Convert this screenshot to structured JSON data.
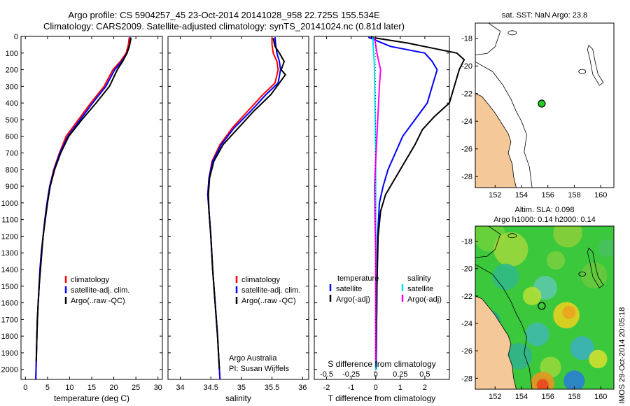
{
  "header": {
    "line1": "Argo profile: CS 5904257_45 23-Oct-2014 20141028_958 22.725S 155.534E",
    "line2": "Climatology: CARS2009. Satellite-adjusted climatology: synTS_20141024.nc (0.81d later)"
  },
  "colors": {
    "climatology": "#ff0000",
    "satellite": "#0000ff",
    "argo": "#000000",
    "salinity_satellite": "#00e5ee",
    "salinity_argo": "#ff00ff",
    "land": "#f5c89a",
    "argo_marker": "#22cc22"
  },
  "chart_data": [
    {
      "type": "line",
      "id": "temperature",
      "xlabel": "temperature (deg C)",
      "ylabel": "",
      "xlim": [
        -1,
        31
      ],
      "ylim": [
        2060,
        0
      ],
      "xticks": [
        "0",
        "5",
        "10",
        "15",
        "20",
        "25",
        "30"
      ],
      "yticks": [
        "0",
        "100",
        "200",
        "300",
        "400",
        "500",
        "600",
        "700",
        "800",
        "900",
        "1000",
        "1100",
        "1200",
        "1300",
        "1400",
        "1500",
        "1600",
        "1700",
        "1800",
        "1900",
        "2000"
      ],
      "legend": [
        "climatology",
        "satellite-adj. clim.",
        "Argo(..raw -QC)"
      ],
      "series": [
        {
          "name": "climatology",
          "color_key": "climatology",
          "points": [
            [
              23.5,
              5
            ],
            [
              23.3,
              50
            ],
            [
              22.8,
              100
            ],
            [
              21.5,
              150
            ],
            [
              19.8,
              200
            ],
            [
              17.8,
              300
            ],
            [
              14.8,
              400
            ],
            [
              12.0,
              500
            ],
            [
              9.2,
              600
            ],
            [
              7.7,
              700
            ],
            [
              6.4,
              800
            ],
            [
              5.5,
              900
            ],
            [
              4.9,
              1000
            ],
            [
              4.4,
              1100
            ],
            [
              4.0,
              1200
            ],
            [
              3.6,
              1300
            ],
            [
              3.3,
              1400
            ],
            [
              3.1,
              1500
            ],
            [
              2.9,
              1600
            ],
            [
              2.7,
              1700
            ],
            [
              2.6,
              1800
            ],
            [
              2.5,
              1900
            ],
            [
              2.4,
              2000
            ],
            [
              2.35,
              2060
            ]
          ]
        },
        {
          "name": "satellite-adj. clim.",
          "color_key": "satellite",
          "points": [
            [
              23.8,
              5
            ],
            [
              23.6,
              50
            ],
            [
              23.0,
              100
            ],
            [
              21.8,
              150
            ],
            [
              20.2,
              200
            ],
            [
              18.2,
              300
            ],
            [
              15.2,
              400
            ],
            [
              12.4,
              500
            ],
            [
              9.6,
              600
            ],
            [
              7.8,
              700
            ],
            [
              6.5,
              800
            ],
            [
              5.5,
              900
            ],
            [
              4.9,
              1000
            ],
            [
              4.4,
              1100
            ],
            [
              4.0,
              1200
            ],
            [
              3.6,
              1300
            ],
            [
              3.3,
              1400
            ],
            [
              3.1,
              1500
            ],
            [
              2.9,
              1600
            ],
            [
              2.7,
              1700
            ],
            [
              2.6,
              1800
            ],
            [
              2.5,
              1900
            ],
            [
              2.4,
              2000
            ],
            [
              2.35,
              2060
            ]
          ]
        },
        {
          "name": "Argo(..raw -QC)",
          "color_key": "argo",
          "points": [
            [
              23.9,
              10
            ],
            [
              23.5,
              60
            ],
            [
              23.0,
              100
            ],
            [
              22.0,
              150
            ],
            [
              20.8,
              200
            ],
            [
              19.0,
              300
            ],
            [
              16.0,
              400
            ],
            [
              12.8,
              500
            ],
            [
              9.8,
              600
            ],
            [
              8.0,
              700
            ],
            [
              6.6,
              800
            ],
            [
              5.6,
              900
            ],
            [
              5.0,
              1000
            ],
            [
              4.5,
              1100
            ],
            [
              4.0,
              1200
            ],
            [
              3.7,
              1300
            ],
            [
              3.4,
              1400
            ],
            [
              3.1,
              1500
            ],
            [
              2.9,
              1600
            ],
            [
              2.7,
              1700
            ],
            [
              2.6,
              1800
            ],
            [
              2.5,
              1900
            ],
            [
              2.45,
              1950
            ]
          ]
        }
      ]
    },
    {
      "type": "line",
      "id": "salinity",
      "xlabel": "salinity",
      "ylabel": "",
      "xlim": [
        33.8,
        36.1
      ],
      "ylim": [
        2060,
        0
      ],
      "xticks": [
        "34",
        "34.5",
        "35",
        "35.5",
        "36"
      ],
      "legend": [
        "climatology",
        "satellite-adj. clim.",
        "Argo(..raw -QC)"
      ],
      "annotation": [
        "Argo Australia",
        "PI: Susan Wijffels"
      ],
      "series": [
        {
          "name": "climatology",
          "color_key": "climatology",
          "points": [
            [
              35.5,
              5
            ],
            [
              35.5,
              50
            ],
            [
              35.52,
              100
            ],
            [
              35.58,
              150
            ],
            [
              35.6,
              200
            ],
            [
              35.55,
              280
            ],
            [
              35.35,
              350
            ],
            [
              35.1,
              450
            ],
            [
              34.85,
              550
            ],
            [
              34.65,
              650
            ],
            [
              34.52,
              750
            ],
            [
              34.47,
              850
            ],
            [
              34.45,
              950
            ],
            [
              34.47,
              1050
            ],
            [
              34.5,
              1200
            ],
            [
              34.53,
              1400
            ],
            [
              34.57,
              1600
            ],
            [
              34.61,
              1800
            ],
            [
              34.64,
              2000
            ],
            [
              34.65,
              2060
            ]
          ]
        },
        {
          "name": "satellite-adj. clim.",
          "color_key": "satellite",
          "points": [
            [
              35.55,
              5
            ],
            [
              35.56,
              50
            ],
            [
              35.58,
              100
            ],
            [
              35.62,
              150
            ],
            [
              35.64,
              200
            ],
            [
              35.6,
              280
            ],
            [
              35.4,
              350
            ],
            [
              35.15,
              450
            ],
            [
              34.88,
              550
            ],
            [
              34.67,
              650
            ],
            [
              34.53,
              750
            ],
            [
              34.47,
              850
            ],
            [
              34.45,
              950
            ],
            [
              34.47,
              1050
            ],
            [
              34.5,
              1200
            ],
            [
              34.53,
              1400
            ],
            [
              34.57,
              1600
            ],
            [
              34.61,
              1800
            ],
            [
              34.64,
              2000
            ],
            [
              34.65,
              2060
            ]
          ]
        },
        {
          "name": "Argo(..raw -QC)",
          "color_key": "argo",
          "points": [
            [
              35.52,
              10
            ],
            [
              35.55,
              60
            ],
            [
              35.62,
              100
            ],
            [
              35.7,
              150
            ],
            [
              35.65,
              200
            ],
            [
              35.72,
              230
            ],
            [
              35.62,
              280
            ],
            [
              35.48,
              350
            ],
            [
              35.2,
              450
            ],
            [
              34.95,
              550
            ],
            [
              34.7,
              650
            ],
            [
              34.55,
              750
            ],
            [
              34.48,
              850
            ],
            [
              34.46,
              950
            ],
            [
              34.47,
              1050
            ],
            [
              34.5,
              1200
            ],
            [
              34.53,
              1400
            ],
            [
              34.57,
              1600
            ],
            [
              34.61,
              1800
            ],
            [
              34.64,
              2000
            ]
          ]
        }
      ]
    },
    {
      "type": "line",
      "id": "difference",
      "xlabel": "T difference from climatology",
      "xlabel_top": "S difference from climatology",
      "xlim": [
        -2.5,
        3.0
      ],
      "xticks": [
        "-2",
        "-1",
        "0",
        "1",
        "2"
      ],
      "xticks_top": [
        "-0.5",
        "-0.25",
        "0",
        "0.25",
        "0.5"
      ],
      "ylim": [
        2060,
        0
      ],
      "legend_temperature": {
        "title": "temperature",
        "items": [
          "satellite",
          "Argo(-adj)"
        ]
      },
      "legend_salinity": {
        "title": "salinity",
        "items": [
          "satellite",
          "Argo(-adj)"
        ]
      },
      "series": [
        {
          "name": "temperature satellite",
          "color_key": "satellite",
          "points": [
            [
              -0.3,
              5
            ],
            [
              0.6,
              60
            ],
            [
              2.0,
              100
            ],
            [
              2.3,
              150
            ],
            [
              2.5,
              200
            ],
            [
              2.3,
              300
            ],
            [
              2.1,
              400
            ],
            [
              1.6,
              500
            ],
            [
              1.1,
              600
            ],
            [
              0.8,
              700
            ],
            [
              0.5,
              800
            ],
            [
              0.3,
              900
            ],
            [
              0.15,
              1000
            ],
            [
              0.08,
              1200
            ],
            [
              0.05,
              1500
            ],
            [
              0.03,
              1800
            ],
            [
              0.02,
              2000
            ]
          ]
        },
        {
          "name": "temperature Argo(-adj)",
          "color_key": "argo",
          "points": [
            [
              -0.2,
              5
            ],
            [
              1.3,
              40
            ],
            [
              2.3,
              70
            ],
            [
              3.3,
              100
            ],
            [
              3.6,
              140
            ],
            [
              3.4,
              200
            ],
            [
              3.2,
              300
            ],
            [
              3.0,
              400
            ],
            [
              2.4,
              480
            ],
            [
              1.9,
              560
            ],
            [
              1.6,
              650
            ],
            [
              1.2,
              750
            ],
            [
              0.8,
              850
            ],
            [
              0.4,
              950
            ],
            [
              0.2,
              1050
            ],
            [
              0.1,
              1200
            ],
            [
              0.05,
              1500
            ],
            [
              0.03,
              1800
            ],
            [
              0.02,
              1950
            ]
          ]
        },
        {
          "name": "salinity satellite",
          "color_key": "salinity_satellite",
          "points": [
            [
              -0.12,
              5
            ],
            [
              -0.1,
              60
            ],
            [
              -0.06,
              150
            ],
            [
              -0.04,
              300
            ],
            [
              -0.02,
              500
            ],
            [
              0.0,
              700
            ],
            [
              0.0,
              900
            ],
            [
              0.0,
              1200
            ],
            [
              0.0,
              1600
            ],
            [
              0.0,
              2000
            ]
          ]
        },
        {
          "name": "salinity Argo(-adj)",
          "color_key": "salinity_argo",
          "points": [
            [
              -0.05,
              5
            ],
            [
              0.05,
              100
            ],
            [
              0.2,
              200
            ],
            [
              0.15,
              300
            ],
            [
              0.1,
              450
            ],
            [
              0.05,
              600
            ],
            [
              0.0,
              750
            ],
            [
              -0.05,
              900
            ],
            [
              -0.03,
              1100
            ],
            [
              0.0,
              1300
            ],
            [
              0.0,
              1600
            ],
            [
              0.0,
              1950
            ]
          ]
        }
      ]
    },
    {
      "type": "scatter",
      "id": "sst-map",
      "title": "sat. SST: NaN Argo: 23.8",
      "xlim": [
        150.5,
        161
      ],
      "ylim": [
        -28.8,
        -16.9
      ],
      "xticks": [
        "152",
        "154",
        "156",
        "158",
        "160"
      ],
      "yticks": [
        "-18",
        "-20",
        "-22",
        "-24",
        "-26",
        "-28"
      ],
      "argo_position": {
        "lon": 155.534,
        "lat": -22.725
      }
    },
    {
      "type": "heatmap",
      "id": "sla-map",
      "title_line1": "Altim. SLA: 0.098",
      "title_line2": "Argo h1000: 0.14 h2000: 0.14",
      "xlim": [
        150.5,
        161
      ],
      "ylim": [
        -28.8,
        -16.9
      ],
      "xticks": [
        "152",
        "154",
        "156",
        "158",
        "160"
      ],
      "yticks": [
        "-18",
        "-20",
        "-22",
        "-24",
        "-26",
        "-28"
      ],
      "argo_position": {
        "lon": 155.534,
        "lat": -22.725
      }
    }
  ],
  "watermark": "IMOS 29-Oct-2014 20:05:18"
}
